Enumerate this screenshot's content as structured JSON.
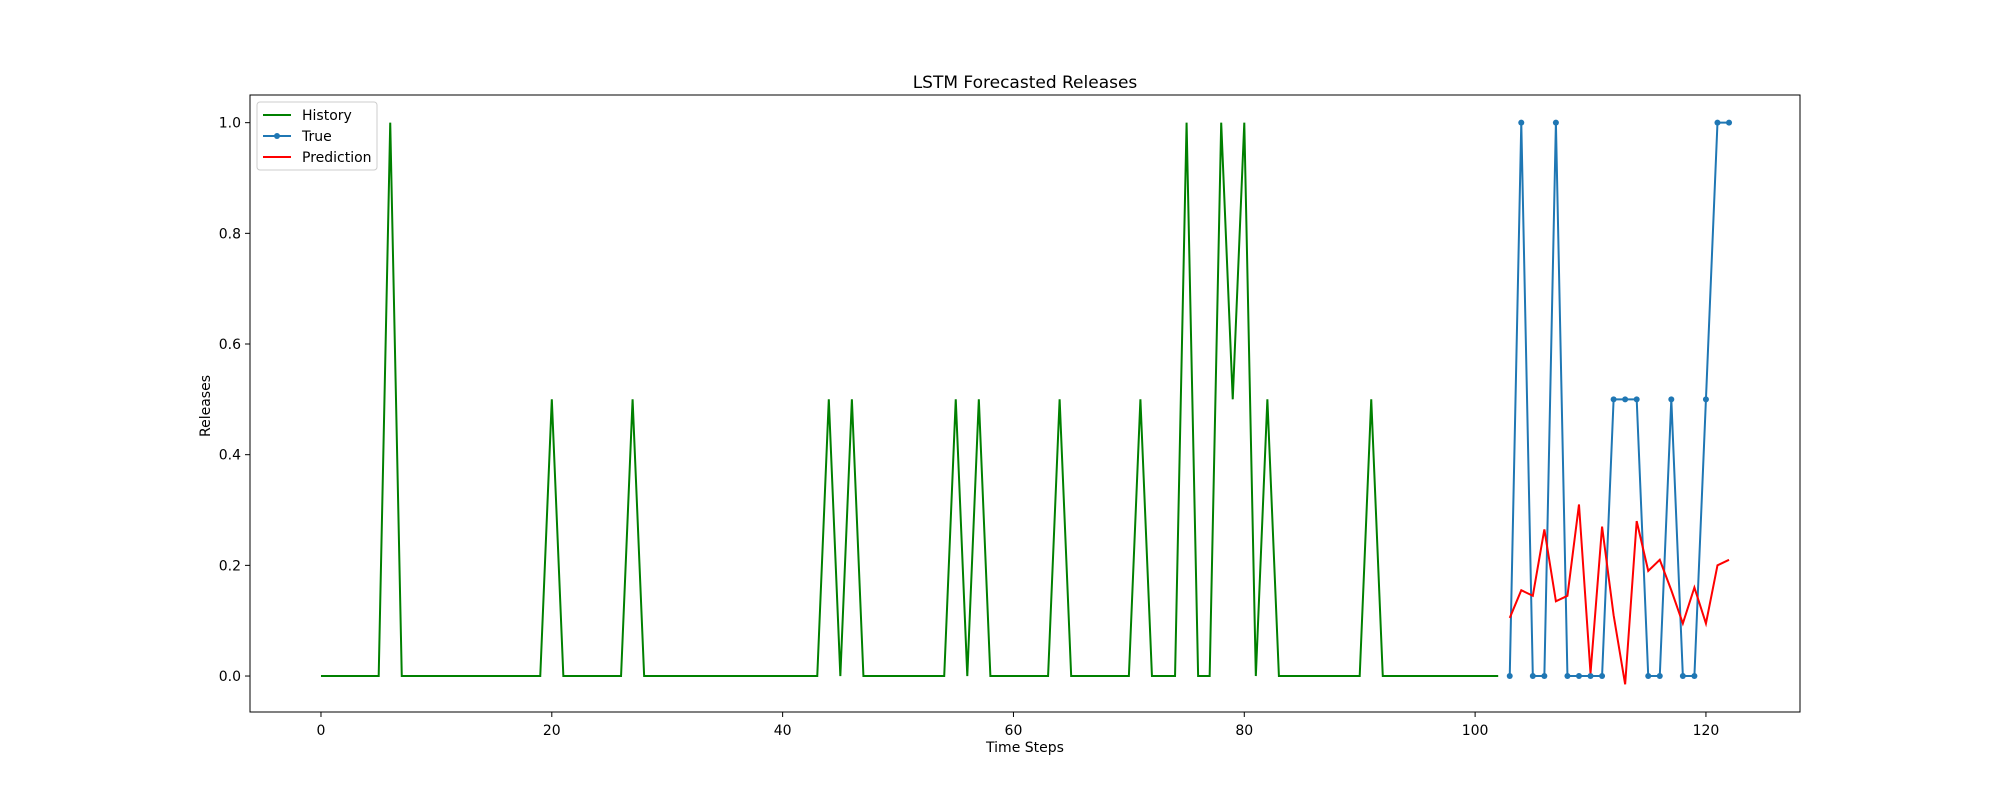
{
  "chart_data": {
    "type": "line",
    "title": "LSTM Forecasted Releases",
    "xlabel": "Time Steps",
    "ylabel": "Releases",
    "xlim": [
      -6.15,
      128.15
    ],
    "ylim": [
      -0.065,
      1.05
    ],
    "xticks": [
      0,
      20,
      40,
      60,
      80,
      100,
      120
    ],
    "yticks": [
      0.0,
      0.2,
      0.4,
      0.6,
      0.8,
      1.0
    ],
    "xtick_labels": [
      "0",
      "20",
      "40",
      "60",
      "80",
      "100",
      "120"
    ],
    "ytick_labels": [
      "0.0",
      "0.2",
      "0.4",
      "0.6",
      "0.8",
      "1.0"
    ],
    "grid": false,
    "legend_position": "top-left",
    "series": [
      {
        "name": "History",
        "color": "#008000",
        "marker": "none",
        "x_start": 0,
        "values": [
          0,
          0,
          0,
          0,
          0,
          0,
          1,
          0,
          0,
          0,
          0,
          0,
          0,
          0,
          0,
          0,
          0,
          0,
          0,
          0,
          0.5,
          0,
          0,
          0,
          0,
          0,
          0,
          0.5,
          0,
          0,
          0,
          0,
          0,
          0,
          0,
          0,
          0,
          0,
          0,
          0,
          0,
          0,
          0,
          0,
          0.5,
          0,
          0.5,
          0,
          0,
          0,
          0,
          0,
          0,
          0,
          0,
          0.5,
          0,
          0.5,
          0,
          0,
          0,
          0,
          0,
          0,
          0.5,
          0,
          0,
          0,
          0,
          0,
          0,
          0.5,
          0,
          0,
          0,
          1,
          0,
          0,
          1,
          0.5,
          1,
          0,
          0.5,
          0,
          0,
          0,
          0,
          0,
          0,
          0,
          0,
          0.5,
          0,
          0,
          0,
          0,
          0,
          0,
          0,
          0,
          0,
          0,
          0
        ]
      },
      {
        "name": "True",
        "color": "#1f77b4",
        "marker": "dot",
        "x_start": 103,
        "values": [
          0,
          1,
          0,
          0,
          1,
          0,
          0,
          0,
          0,
          0.5,
          0.5,
          0.5,
          0,
          0,
          0.5,
          0,
          0,
          0.5,
          1,
          1
        ]
      },
      {
        "name": "Prediction",
        "color": "#ff0000",
        "marker": "none",
        "x_start": 103,
        "values": [
          0.105,
          0.155,
          0.145,
          0.265,
          0.135,
          0.145,
          0.31,
          0.005,
          0.27,
          0.11,
          -0.015,
          0.28,
          0.19,
          0.21,
          0.155,
          0.095,
          0.16,
          0.095,
          0.2,
          0.21
        ]
      }
    ]
  }
}
